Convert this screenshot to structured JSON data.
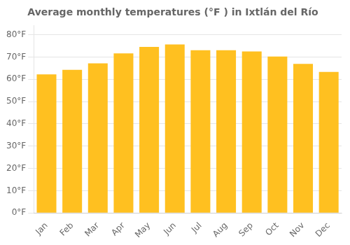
{
  "chart_data": {
    "type": "bar",
    "title": "Average monthly temperatures (°F ) in Ixtlán del Río",
    "categories": [
      "Jan",
      "Feb",
      "Mar",
      "Apr",
      "May",
      "Jun",
      "Jul",
      "Aug",
      "Sep",
      "Oct",
      "Nov",
      "Dec"
    ],
    "values": [
      62.2,
      64.2,
      67.1,
      71.6,
      74.5,
      75.6,
      73.0,
      73.0,
      72.5,
      70.2,
      66.9,
      63.3
    ],
    "color": "#FFC020",
    "ylim": [
      0,
      84
    ],
    "yticks": [
      {
        "value": 0,
        "label": "0°F"
      },
      {
        "value": 10,
        "label": "10°F"
      },
      {
        "value": 20,
        "label": "20°F"
      },
      {
        "value": 30,
        "label": "30°F"
      },
      {
        "value": 40,
        "label": "40°F"
      },
      {
        "value": 50,
        "label": "50°F"
      },
      {
        "value": 60,
        "label": "60°F"
      },
      {
        "value": 70,
        "label": "70°F"
      },
      {
        "value": 80,
        "label": "80°F"
      }
    ],
    "grid": true
  }
}
